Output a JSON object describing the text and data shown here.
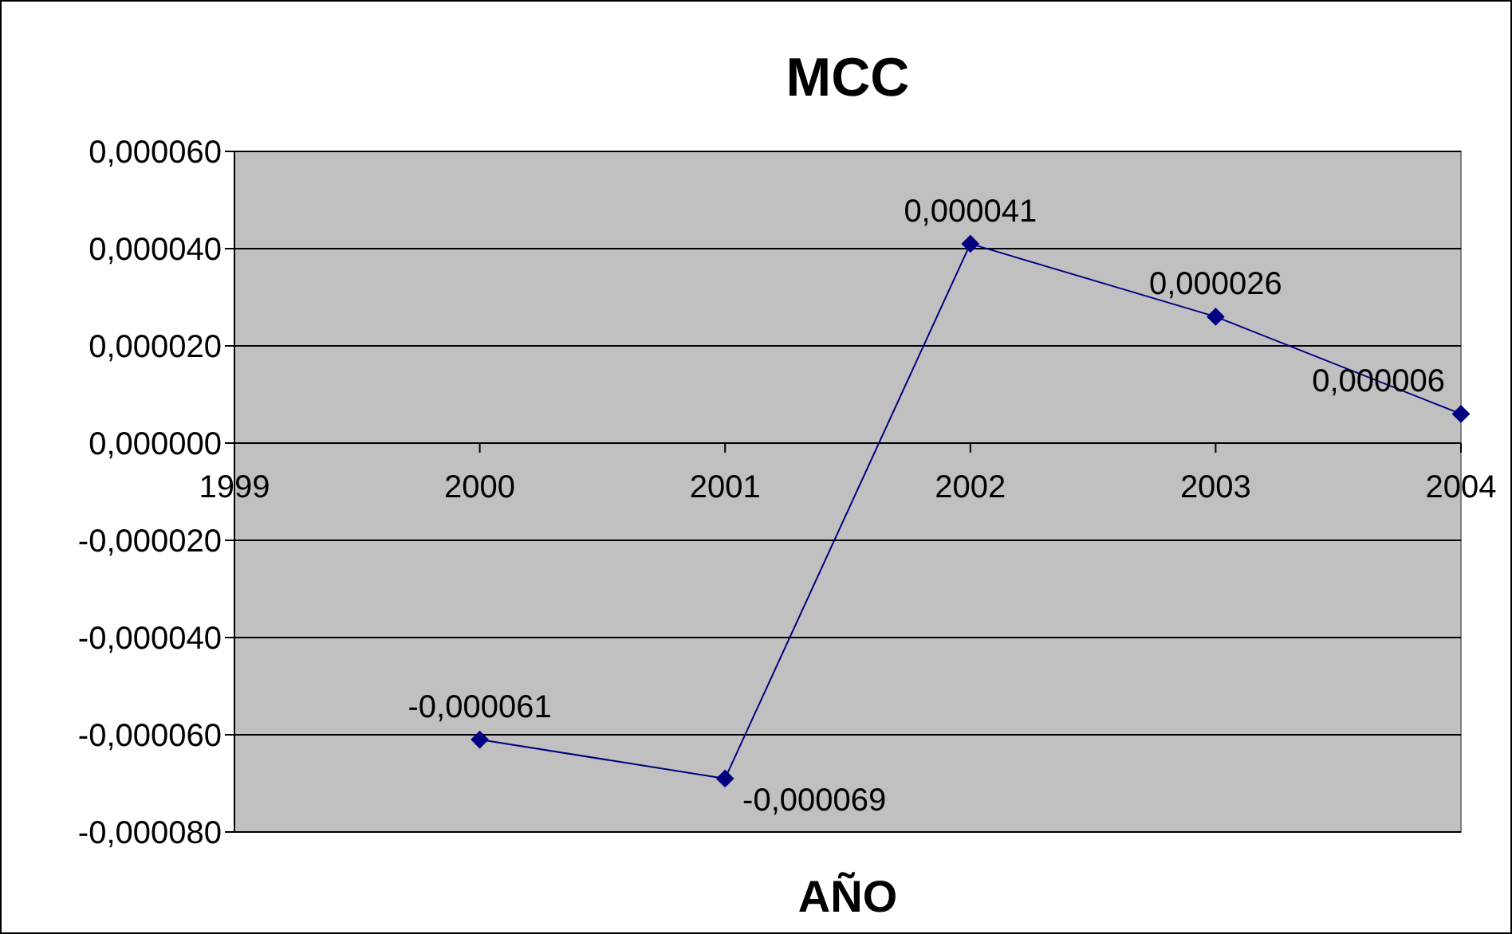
{
  "chart_data": {
    "type": "line",
    "title": "MCC",
    "xlabel": "AÑO",
    "x": [
      2000,
      2001,
      2002,
      2003,
      2004
    ],
    "series": [
      {
        "color": "#000080",
        "values": [
          -6.1e-05,
          -6.9e-05,
          4.1e-05,
          2.6e-05,
          6e-06
        ],
        "value_labels": [
          "-0,000061",
          "-0,000069",
          "0,000041",
          "0,000026",
          "0,000006"
        ]
      }
    ],
    "xlim": [
      1999,
      2004
    ],
    "xticks": [
      1999,
      2000,
      2001,
      2002,
      2003,
      2004
    ],
    "ylim": [
      -8e-05,
      6e-05
    ],
    "yticks": [
      {
        "value": -8e-05,
        "label": "-0,000080"
      },
      {
        "value": -6e-05,
        "label": "-0,000060"
      },
      {
        "value": -4e-05,
        "label": "-0,000040"
      },
      {
        "value": -2e-05,
        "label": "-0,000020"
      },
      {
        "value": 0,
        "label": "0,000000"
      },
      {
        "value": 2e-05,
        "label": "0,000020"
      },
      {
        "value": 4e-05,
        "label": "0,000040"
      },
      {
        "value": 6e-05,
        "label": "0,000060"
      }
    ],
    "grid": "y",
    "marker": "diamond",
    "line_style": "solid"
  }
}
